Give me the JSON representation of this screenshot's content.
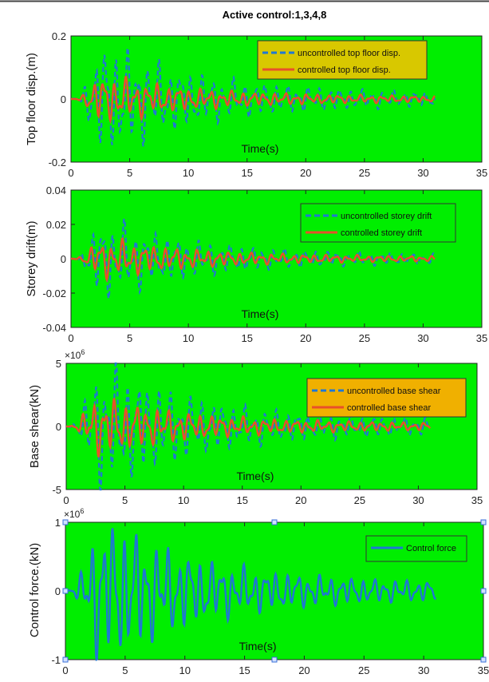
{
  "figure_title": "Active control:1,3,4,8",
  "colors": {
    "plot_background": "#00ee00",
    "uncontrolled": "#1f77d4",
    "controlled": "#e8502a",
    "control_force": "#1f77d4",
    "legend_background_1": "#d8c800",
    "legend_background_2": "#00ee00",
    "legend_background_3": "#f0b000",
    "legend_background_4": "#00ee00"
  },
  "chart_data": [
    {
      "type": "line",
      "ylabel": "Top floor disp.(m)",
      "xlabel": "Time(s)",
      "xlim": [
        0,
        35
      ],
      "ylim": [
        -0.2,
        0.2
      ],
      "xticks": [
        "0",
        "5",
        "10",
        "15",
        "20",
        "25",
        "30",
        "35"
      ],
      "yticks": [
        "-0.2",
        "0",
        "0.2"
      ],
      "exponent_label": "",
      "legend_position": "top-right",
      "series": [
        {
          "name": "uncontrolled top floor disp.",
          "style": "dashed",
          "duration": 31,
          "peak": 0.17,
          "peak_time": 4.2
        },
        {
          "name": "controlled top floor disp.",
          "style": "solid",
          "duration": 31,
          "peak": 0.07,
          "peak_time": 4.0
        }
      ]
    },
    {
      "type": "line",
      "ylabel": "Storey drift(m)",
      "xlabel": "Time(s)",
      "xlim": [
        0,
        35
      ],
      "ylim": [
        -0.04,
        0.04
      ],
      "xticks": [
        "0",
        "5",
        "10",
        "15",
        "20",
        "25",
        "30",
        "35"
      ],
      "yticks": [
        "-0.04",
        "-0.02",
        "0",
        "0.02",
        "0.04"
      ],
      "exponent_label": "",
      "legend_position": "top-right",
      "series": [
        {
          "name": "uncontrolled storey drift",
          "style": "dashed",
          "duration": 31,
          "peak": 0.022,
          "peak_time": 4.0
        },
        {
          "name": "controlled storey drift",
          "style": "solid",
          "duration": 31,
          "peak": 0.011,
          "peak_time": 4.0
        }
      ]
    },
    {
      "type": "line",
      "ylabel": "Base shear(kN)",
      "xlabel": "Time(s)",
      "xlim": [
        0,
        35
      ],
      "ylim": [
        -5,
        5
      ],
      "xticks": [
        "0",
        "5",
        "10",
        "15",
        "20",
        "25",
        "30",
        "35"
      ],
      "yticks": [
        "-5",
        "0",
        "5"
      ],
      "exponent_label": "×10^6",
      "legend_position": "top-right",
      "series": [
        {
          "name": "uncontrolled base shear",
          "style": "dashed",
          "duration": 31,
          "peak": 4.8,
          "peak_time": 4.5
        },
        {
          "name": "controlled base shear",
          "style": "solid",
          "duration": 31,
          "peak": 2.2,
          "peak_time": 4.0
        }
      ]
    },
    {
      "type": "line",
      "ylabel": "Control force.(kN)",
      "xlabel": "Time(s)",
      "xlim": [
        0,
        35
      ],
      "ylim": [
        -1,
        1
      ],
      "xticks": [
        "0",
        "5",
        "10",
        "15",
        "20",
        "25",
        "30",
        "35"
      ],
      "yticks": [
        "-1",
        "0",
        "1"
      ],
      "exponent_label": "×10^6",
      "legend_position": "top-right",
      "series": [
        {
          "name": "Control force",
          "style": "solid",
          "duration": 31,
          "peak": 1.0,
          "peak_time": 4.6
        }
      ]
    }
  ]
}
